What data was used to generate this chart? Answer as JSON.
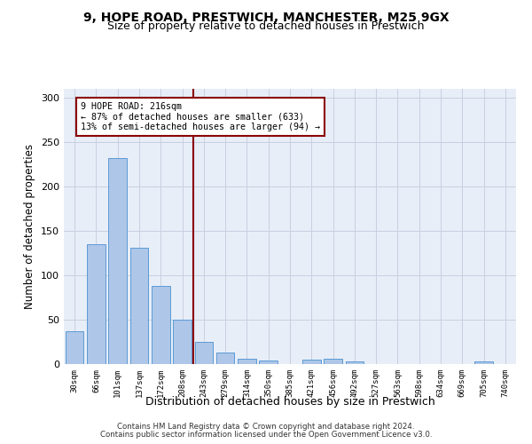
{
  "title1": "9, HOPE ROAD, PRESTWICH, MANCHESTER, M25 9GX",
  "title2": "Size of property relative to detached houses in Prestwich",
  "xlabel": "Distribution of detached houses by size in Prestwich",
  "ylabel": "Number of detached properties",
  "categories": [
    "30sqm",
    "66sqm",
    "101sqm",
    "137sqm",
    "172sqm",
    "208sqm",
    "243sqm",
    "279sqm",
    "314sqm",
    "350sqm",
    "385sqm",
    "421sqm",
    "456sqm",
    "492sqm",
    "527sqm",
    "563sqm",
    "598sqm",
    "634sqm",
    "669sqm",
    "705sqm",
    "740sqm"
  ],
  "bar_values": [
    37,
    135,
    232,
    131,
    88,
    50,
    25,
    13,
    6,
    4,
    0,
    5,
    6,
    3,
    0,
    0,
    0,
    0,
    0,
    3,
    0
  ],
  "bar_color": "#aec6e8",
  "bar_edge_color": "#5b9bd5",
  "vline_x_index": 5.5,
  "vline_color": "#8b0000",
  "annotation_text": "9 HOPE ROAD: 216sqm\n← 87% of detached houses are smaller (633)\n13% of semi-detached houses are larger (94) →",
  "annotation_box_color": "#ffffff",
  "annotation_box_edge": "#8b0000",
  "ylim": [
    0,
    310
  ],
  "yticks": [
    0,
    50,
    100,
    150,
    200,
    250,
    300
  ],
  "footer1": "Contains HM Land Registry data © Crown copyright and database right 2024.",
  "footer2": "Contains public sector information licensed under the Open Government Licence v3.0.",
  "bg_color": "#e8eef8",
  "grid_color": "#c8d0e0"
}
